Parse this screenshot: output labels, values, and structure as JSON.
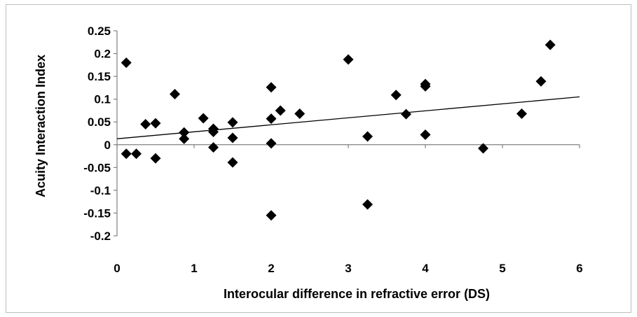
{
  "chart_data": {
    "type": "scatter",
    "xlabel": "Interocular difference in refractive error (DS)",
    "ylabel": "Acuity Interaction Index",
    "xlim": [
      0,
      6
    ],
    "ylim": [
      -0.2,
      0.25
    ],
    "x_ticks": [
      0,
      1,
      2,
      3,
      4,
      5,
      6
    ],
    "y_ticks": [
      -0.2,
      -0.15,
      -0.1,
      -0.05,
      0,
      0.05,
      0.1,
      0.15,
      0.2,
      0.25
    ],
    "x_tick_labels": [
      "0",
      "1",
      "2",
      "3",
      "4",
      "5",
      "6"
    ],
    "y_tick_labels": [
      "-0.2",
      "-0.15",
      "-0.1",
      "-0.05",
      "0",
      "0.05",
      "0.1",
      "0.15",
      "0.2",
      "0.25"
    ],
    "grid": false,
    "marker": "diamond",
    "marker_color": "#000000",
    "points": [
      {
        "x": 0.12,
        "y": 0.18
      },
      {
        "x": 0.12,
        "y": -0.02
      },
      {
        "x": 0.25,
        "y": -0.02
      },
      {
        "x": 0.37,
        "y": 0.045
      },
      {
        "x": 0.5,
        "y": 0.047
      },
      {
        "x": 0.5,
        "y": -0.03
      },
      {
        "x": 0.75,
        "y": 0.111
      },
      {
        "x": 0.87,
        "y": 0.027
      },
      {
        "x": 0.87,
        "y": 0.013
      },
      {
        "x": 1.12,
        "y": 0.058
      },
      {
        "x": 1.25,
        "y": 0.035
      },
      {
        "x": 1.25,
        "y": 0.028
      },
      {
        "x": 1.25,
        "y": -0.006
      },
      {
        "x": 1.5,
        "y": 0.049
      },
      {
        "x": 1.5,
        "y": 0.015
      },
      {
        "x": 1.5,
        "y": -0.039
      },
      {
        "x": 2.0,
        "y": 0.126
      },
      {
        "x": 2.0,
        "y": 0.057
      },
      {
        "x": 2.0,
        "y": 0.003
      },
      {
        "x": 2.0,
        "y": -0.155
      },
      {
        "x": 2.12,
        "y": 0.075
      },
      {
        "x": 2.37,
        "y": 0.068
      },
      {
        "x": 3.0,
        "y": 0.187
      },
      {
        "x": 3.25,
        "y": 0.018
      },
      {
        "x": 3.25,
        "y": -0.131
      },
      {
        "x": 3.62,
        "y": 0.109
      },
      {
        "x": 3.75,
        "y": 0.067
      },
      {
        "x": 4.0,
        "y": 0.133
      },
      {
        "x": 4.0,
        "y": 0.128
      },
      {
        "x": 4.0,
        "y": 0.022
      },
      {
        "x": 4.75,
        "y": -0.008
      },
      {
        "x": 5.25,
        "y": 0.068
      },
      {
        "x": 5.5,
        "y": 0.139
      },
      {
        "x": 5.62,
        "y": 0.219
      }
    ],
    "trendline": {
      "type": "linear",
      "x": [
        0,
        6
      ],
      "y": [
        0.013,
        0.105
      ]
    }
  }
}
